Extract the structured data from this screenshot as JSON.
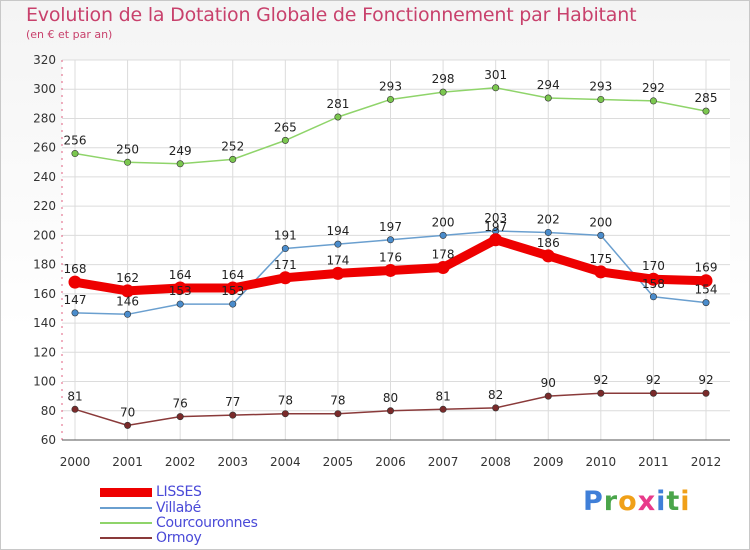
{
  "title": "Evolution de la Dotation Globale de Fonctionnement par Habitant",
  "subtitle": "(en € et par an)",
  "logo": {
    "letters": [
      "P",
      "r",
      "o",
      "x",
      "i",
      "t",
      "i"
    ],
    "colors": [
      "#3f7fd8",
      "#4aa54a",
      "#f0a018",
      "#e83a8a",
      "#3f7fd8",
      "#4aa54a",
      "#f0a018"
    ]
  },
  "chart_data": {
    "type": "line",
    "categories": [
      "2000",
      "2001",
      "2002",
      "2003",
      "2004",
      "2005",
      "2006",
      "2007",
      "2008",
      "2009",
      "2010",
      "2011",
      "2012"
    ],
    "ylim": [
      60,
      320
    ],
    "yticks": [
      60,
      80,
      100,
      120,
      140,
      160,
      180,
      200,
      220,
      240,
      260,
      280,
      300,
      320
    ],
    "grid": true,
    "legend_position": "bottom-left",
    "series": [
      {
        "name": "Courcouronnes",
        "color": "#8fd46a",
        "marker": "#7bc74f",
        "values": [
          256,
          250,
          249,
          252,
          265,
          281,
          293,
          298,
          301,
          294,
          293,
          292,
          285
        ],
        "labels": [
          "256",
          "250",
          "249",
          "252",
          "265",
          "281",
          "293",
          "298",
          "301",
          "294",
          "293",
          "292",
          "285"
        ]
      },
      {
        "name": "Villabé",
        "color": "#6a9fcf",
        "marker": "#4a8ccc",
        "values": [
          147,
          146,
          153,
          153,
          191,
          194,
          197,
          200,
          203,
          202,
          200,
          158,
          154
        ],
        "labels": [
          "147",
          "146",
          "153",
          "153",
          "191",
          "194",
          "197",
          "200",
          "203",
          "202",
          "200",
          "158",
          "154"
        ]
      },
      {
        "name": "Ormoy",
        "color": "#8a3a3a",
        "marker": "#7a2a2a",
        "values": [
          81,
          70,
          76,
          77,
          78,
          78,
          80,
          81,
          82,
          90,
          92,
          92,
          92
        ],
        "labels": [
          "81",
          "70",
          "76",
          "77",
          "78",
          "78",
          "80",
          "81",
          "82",
          "90",
          "92",
          "92",
          "92"
        ]
      },
      {
        "name": "LISSES",
        "color": "#ee0000",
        "marker": "#ee0000",
        "values": [
          168,
          162,
          164,
          164,
          171,
          174,
          176,
          178,
          197,
          186,
          175,
          170,
          169
        ],
        "labels": [
          "168",
          "162",
          "164",
          "164",
          "171",
          "174",
          "176",
          "178",
          "197",
          "186",
          "175",
          "170",
          "169"
        ]
      }
    ],
    "legend": [
      {
        "name": "LISSES",
        "color": "#ee0000",
        "thick": true
      },
      {
        "name": "Villabé",
        "color": "#6a9fcf",
        "thick": false
      },
      {
        "name": "Courcouronnes",
        "color": "#8fd46a",
        "thick": false
      },
      {
        "name": "Ormoy",
        "color": "#8a3a3a",
        "thick": false
      }
    ]
  }
}
